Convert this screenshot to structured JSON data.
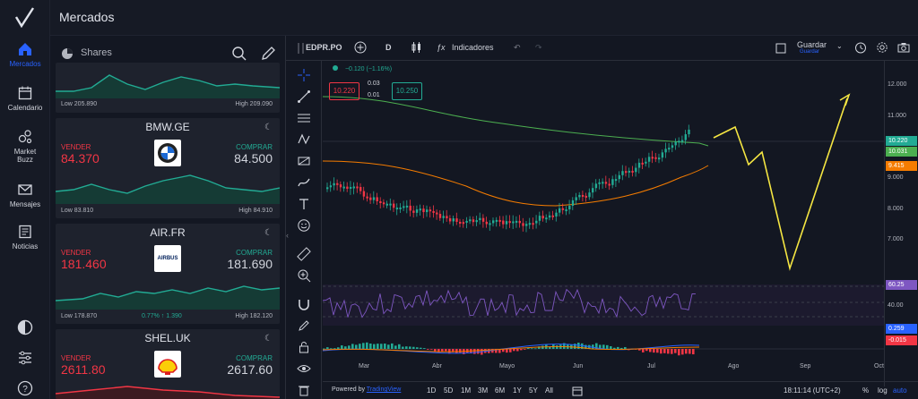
{
  "header": {
    "title": "Mercados"
  },
  "nav": {
    "items": [
      {
        "label": "Mercados"
      },
      {
        "label": "Calendario"
      },
      {
        "label": "Market Buzz"
      },
      {
        "label": "Mensajes"
      },
      {
        "label": "Noticias"
      }
    ]
  },
  "market": {
    "group_label": "Shares",
    "cards": [
      {
        "symbol": "",
        "low": "Low 205.890",
        "high": "High 209.090"
      },
      {
        "symbol": "BMW.GE",
        "sell_label": "VENDER",
        "sell": "84.370",
        "buy_label": "COMPRAR",
        "buy": "84.500",
        "low": "Low 83.810",
        "high": "High 84.910"
      },
      {
        "symbol": "AIR.FR",
        "sell_label": "VENDER",
        "sell": "181.460",
        "buy_label": "COMPRAR",
        "buy": "181.690",
        "low": "Low 178.870",
        "change": "0.77% ↑ 1.390",
        "high": "High 182.120",
        "logo_text": "AIRBUS"
      },
      {
        "symbol": "SHEL.UK",
        "sell_label": "VENDER",
        "sell": "2611.80",
        "buy_label": "COMPRAR",
        "buy": "2617.60"
      }
    ]
  },
  "chart": {
    "symbol": "EDPR.PO",
    "interval": "D",
    "indicators_label": "Indicadores",
    "save_label": "Guardar",
    "save_sub": "Guardar",
    "change_text": "−0.120 (−1.16%)",
    "sell_price": "10.220",
    "spread_a": "0.03",
    "spread_b": "0.01",
    "buy_price": "10.250",
    "powered": "Powered by",
    "powered_brand": "TradingView",
    "ranges": [
      "1D",
      "5D",
      "1M",
      "3M",
      "6M",
      "1Y",
      "5Y",
      "All"
    ],
    "time": "18:11:14 (UTC+2)",
    "pct": "%",
    "log": "log",
    "auto": "auto",
    "x_ticks": [
      "Mar",
      "Abr",
      "Mayo",
      "Jun",
      "Jul",
      "Ago",
      "Sep",
      "Oct"
    ],
    "price_ticks": [
      "12.000",
      "11.000",
      "9.000",
      "8.000",
      "7.000"
    ],
    "rsi_tick": "40.00",
    "tags": {
      "price_a": "10.220",
      "price_b": "10.031",
      "price_c": "9.415",
      "rsi": "60.25",
      "macd_a": "0.259",
      "macd_b": "-0.015"
    },
    "colors": {
      "up": "#22ab94",
      "down": "#f23645",
      "accent": "#2962ff",
      "ma_green": "#4caf50",
      "ma_orange": "#f57c00",
      "projection": "#f5e642",
      "rsi": "#7e57c2"
    }
  }
}
